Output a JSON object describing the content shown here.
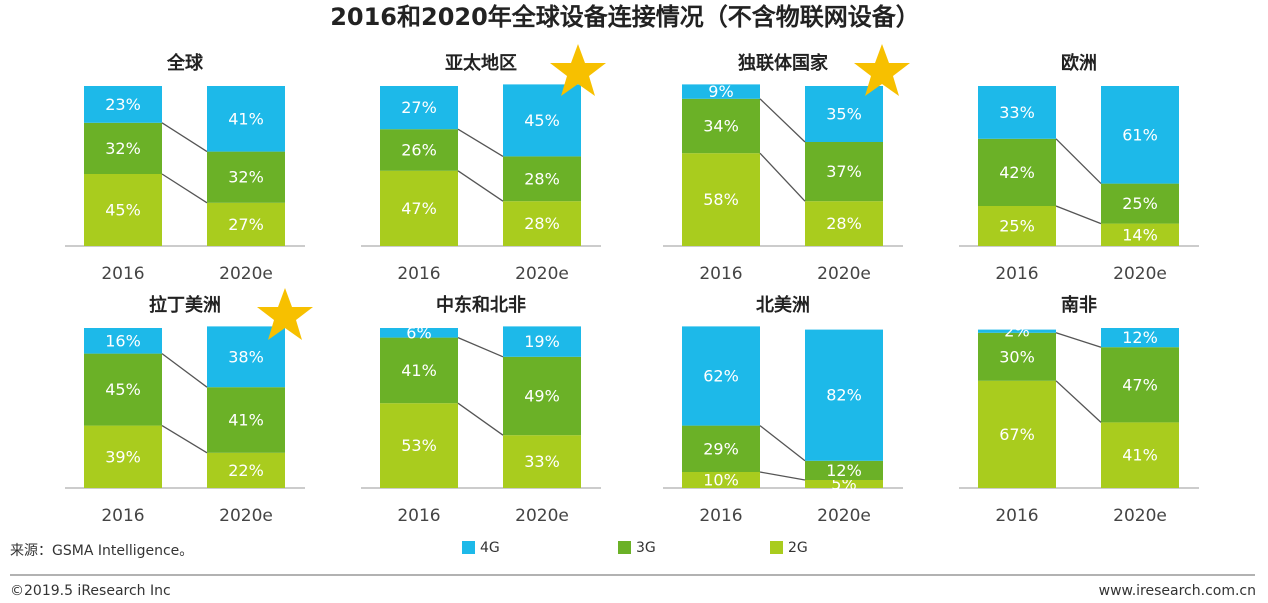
{
  "title": "2016和2020年全球设备连接情况（不含物联网设备）",
  "source": "来源：GSMA Intelligence。",
  "footer": {
    "copyright": "©2019.5 iResearch Inc",
    "url": "www.iresearch.com.cn"
  },
  "chart_data": [
    {
      "type": "bar",
      "stacked": true,
      "title": "全球",
      "categories": [
        "2016",
        "2020e"
      ],
      "ylim": [
        0,
        100
      ],
      "series": [
        {
          "name": "4G",
          "color": "#1db9e9",
          "values": [
            23,
            41
          ],
          "value_labels": [
            "23%",
            "41%"
          ]
        },
        {
          "name": "3G",
          "color": "#6bb127",
          "values": [
            32,
            32
          ],
          "value_labels": [
            "32%",
            "32%"
          ]
        },
        {
          "name": "2G",
          "color": "#a9cc1e",
          "values": [
            45,
            27
          ],
          "value_labels": [
            "45%",
            "27%"
          ]
        }
      ]
    },
    {
      "type": "bar",
      "stacked": true,
      "title": "亚太地区",
      "categories": [
        "2016",
        "2020e"
      ],
      "ylim": [
        0,
        100
      ],
      "series": [
        {
          "name": "4G",
          "color": "#1db9e9",
          "values": [
            27,
            45
          ],
          "value_labels": [
            "27%",
            "45%"
          ]
        },
        {
          "name": "3G",
          "color": "#6bb127",
          "values": [
            26,
            28
          ],
          "value_labels": [
            "26%",
            "28%"
          ]
        },
        {
          "name": "2G",
          "color": "#a9cc1e",
          "values": [
            47,
            28
          ],
          "value_labels": [
            "47%",
            "28%"
          ]
        }
      ]
    },
    {
      "type": "bar",
      "stacked": true,
      "title": "独联体国家",
      "categories": [
        "2016",
        "2020e"
      ],
      "ylim": [
        0,
        100
      ],
      "series": [
        {
          "name": "4G",
          "color": "#1db9e9",
          "values": [
            9,
            35
          ],
          "value_labels": [
            "9%",
            "35%"
          ]
        },
        {
          "name": "3G",
          "color": "#6bb127",
          "values": [
            34,
            37
          ],
          "value_labels": [
            "34%",
            "37%"
          ]
        },
        {
          "name": "2G",
          "color": "#a9cc1e",
          "values": [
            58,
            28
          ],
          "value_labels": [
            "58%",
            "28%"
          ]
        }
      ]
    },
    {
      "type": "bar",
      "stacked": true,
      "title": "欧洲",
      "categories": [
        "2016",
        "2020e"
      ],
      "ylim": [
        0,
        100
      ],
      "series": [
        {
          "name": "4G",
          "color": "#1db9e9",
          "values": [
            33,
            61
          ],
          "value_labels": [
            "33%",
            "61%"
          ]
        },
        {
          "name": "3G",
          "color": "#6bb127",
          "values": [
            42,
            25
          ],
          "value_labels": [
            "42%",
            "25%"
          ]
        },
        {
          "name": "2G",
          "color": "#a9cc1e",
          "values": [
            25,
            14
          ],
          "value_labels": [
            "25%",
            "14%"
          ]
        }
      ]
    },
    {
      "type": "bar",
      "stacked": true,
      "title": "拉丁美洲",
      "categories": [
        "2016",
        "2020e"
      ],
      "ylim": [
        0,
        100
      ],
      "series": [
        {
          "name": "4G",
          "color": "#1db9e9",
          "values": [
            16,
            38
          ],
          "value_labels": [
            "16%",
            "38%"
          ]
        },
        {
          "name": "3G",
          "color": "#6bb127",
          "values": [
            45,
            41
          ],
          "value_labels": [
            "45%",
            "41%"
          ]
        },
        {
          "name": "2G",
          "color": "#a9cc1e",
          "values": [
            39,
            22
          ],
          "value_labels": [
            "39%",
            "22%"
          ]
        }
      ]
    },
    {
      "type": "bar",
      "stacked": true,
      "title": "中东和北非",
      "categories": [
        "2016",
        "2020e"
      ],
      "ylim": [
        0,
        100
      ],
      "series": [
        {
          "name": "4G",
          "color": "#1db9e9",
          "values": [
            6,
            19
          ],
          "value_labels": [
            "6%",
            "19%"
          ]
        },
        {
          "name": "3G",
          "color": "#6bb127",
          "values": [
            41,
            49
          ],
          "value_labels": [
            "41%",
            "49%"
          ]
        },
        {
          "name": "2G",
          "color": "#a9cc1e",
          "values": [
            53,
            33
          ],
          "value_labels": [
            "53%",
            "33%"
          ]
        }
      ]
    },
    {
      "type": "bar",
      "stacked": true,
      "title": "北美洲",
      "categories": [
        "2016",
        "2020e"
      ],
      "ylim": [
        0,
        100
      ],
      "series": [
        {
          "name": "4G",
          "color": "#1db9e9",
          "values": [
            62,
            82
          ],
          "value_labels": [
            "62%",
            "82%"
          ]
        },
        {
          "name": "3G",
          "color": "#6bb127",
          "values": [
            29,
            12
          ],
          "value_labels": [
            "29%",
            "12%"
          ]
        },
        {
          "name": "2G",
          "color": "#a9cc1e",
          "values": [
            10,
            5
          ],
          "value_labels": [
            "10%",
            "5%"
          ]
        }
      ]
    },
    {
      "type": "bar",
      "stacked": true,
      "title": "南非",
      "categories": [
        "2016",
        "2020e"
      ],
      "ylim": [
        0,
        100
      ],
      "series": [
        {
          "name": "4G",
          "color": "#1db9e9",
          "values": [
            2,
            12
          ],
          "value_labels": [
            "2%",
            "12%"
          ]
        },
        {
          "name": "3G",
          "color": "#6bb127",
          "values": [
            30,
            47
          ],
          "value_labels": [
            "30%",
            "47%"
          ]
        },
        {
          "name": "2G",
          "color": "#a9cc1e",
          "values": [
            67,
            41
          ],
          "value_labels": [
            "67%",
            "41%"
          ]
        }
      ]
    }
  ]
}
